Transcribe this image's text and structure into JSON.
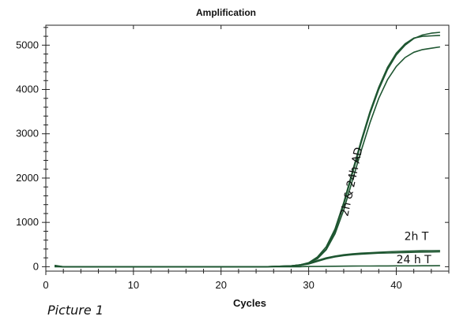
{
  "caption": "Picture 1",
  "chart_data": {
    "type": "line",
    "title": "Amplification",
    "xlabel": "Cycles",
    "ylabel": "",
    "xlim": [
      0,
      46
    ],
    "ylim": [
      -100,
      5450
    ],
    "x_ticks": [
      0,
      10,
      20,
      30,
      40
    ],
    "y_ticks": [
      0,
      1000,
      2000,
      3000,
      4000,
      5000
    ],
    "grid": false,
    "line_color": "#1e5631",
    "annotations": [
      {
        "text": "2h & 24h AD",
        "x": 35.3,
        "y": 1900,
        "rotation": -78
      },
      {
        "text": "2h T",
        "x": 42.3,
        "y": 600
      },
      {
        "text": "24 h T",
        "x": 42.0,
        "y": 80
      }
    ],
    "series": [
      {
        "x": [
          1,
          2,
          3,
          5,
          10,
          15,
          20,
          25,
          28,
          29,
          30,
          31,
          32,
          33,
          34,
          35,
          36,
          37,
          38,
          39,
          40,
          41,
          42,
          43,
          44,
          45
        ],
        "values": [
          30,
          0,
          0,
          0,
          0,
          0,
          0,
          0,
          20,
          40,
          80,
          200,
          400,
          800,
          1400,
          2100,
          2800,
          3450,
          4000,
          4450,
          4780,
          5000,
          5150,
          5230,
          5270,
          5290
        ]
      },
      {
        "x": [
          1,
          2,
          3,
          5,
          10,
          15,
          20,
          25,
          28,
          29,
          30,
          31,
          32,
          33,
          34,
          35,
          36,
          37,
          38,
          39,
          40,
          41,
          42,
          43,
          44,
          45
        ],
        "values": [
          20,
          0,
          0,
          0,
          0,
          0,
          0,
          0,
          20,
          40,
          90,
          220,
          450,
          850,
          1450,
          2150,
          2850,
          3500,
          4050,
          4500,
          4820,
          5030,
          5160,
          5200,
          5210,
          5220
        ]
      },
      {
        "x": [
          1,
          2,
          3,
          5,
          10,
          15,
          20,
          25,
          28,
          29,
          30,
          31,
          32,
          33,
          34,
          35,
          36,
          37,
          38,
          39,
          40,
          41,
          42,
          43,
          44,
          45
        ],
        "values": [
          10,
          0,
          0,
          0,
          0,
          0,
          0,
          0,
          20,
          40,
          80,
          180,
          380,
          740,
          1280,
          1950,
          2620,
          3250,
          3800,
          4220,
          4520,
          4720,
          4840,
          4900,
          4930,
          4960
        ]
      },
      {
        "x": [
          1,
          2,
          3,
          5,
          10,
          15,
          20,
          25,
          28,
          29,
          30,
          31,
          32,
          33,
          34,
          35,
          36,
          37,
          38,
          39,
          40,
          41,
          42,
          43,
          44,
          45
        ],
        "values": [
          10,
          0,
          0,
          0,
          0,
          0,
          0,
          0,
          10,
          30,
          70,
          140,
          200,
          240,
          270,
          290,
          305,
          315,
          325,
          335,
          345,
          350,
          355,
          360,
          362,
          365
        ]
      },
      {
        "x": [
          1,
          2,
          3,
          5,
          10,
          15,
          20,
          25,
          28,
          29,
          30,
          31,
          32,
          33,
          34,
          35,
          36,
          37,
          38,
          39,
          40,
          41,
          42,
          43,
          44,
          45
        ],
        "values": [
          5,
          0,
          0,
          0,
          0,
          0,
          0,
          0,
          10,
          30,
          60,
          120,
          180,
          220,
          250,
          270,
          285,
          295,
          305,
          310,
          315,
          320,
          325,
          330,
          332,
          335
        ]
      },
      {
        "x": [
          1,
          2,
          3,
          5,
          10,
          15,
          20,
          25,
          28,
          29,
          30,
          31,
          32,
          33,
          34,
          35,
          36,
          37,
          38,
          39,
          40,
          41,
          42,
          43,
          44,
          45
        ],
        "values": [
          0,
          0,
          0,
          0,
          0,
          0,
          0,
          0,
          0,
          0,
          5,
          5,
          8,
          10,
          12,
          14,
          15,
          16,
          17,
          18,
          19,
          20,
          20,
          21,
          21,
          22
        ]
      }
    ]
  }
}
